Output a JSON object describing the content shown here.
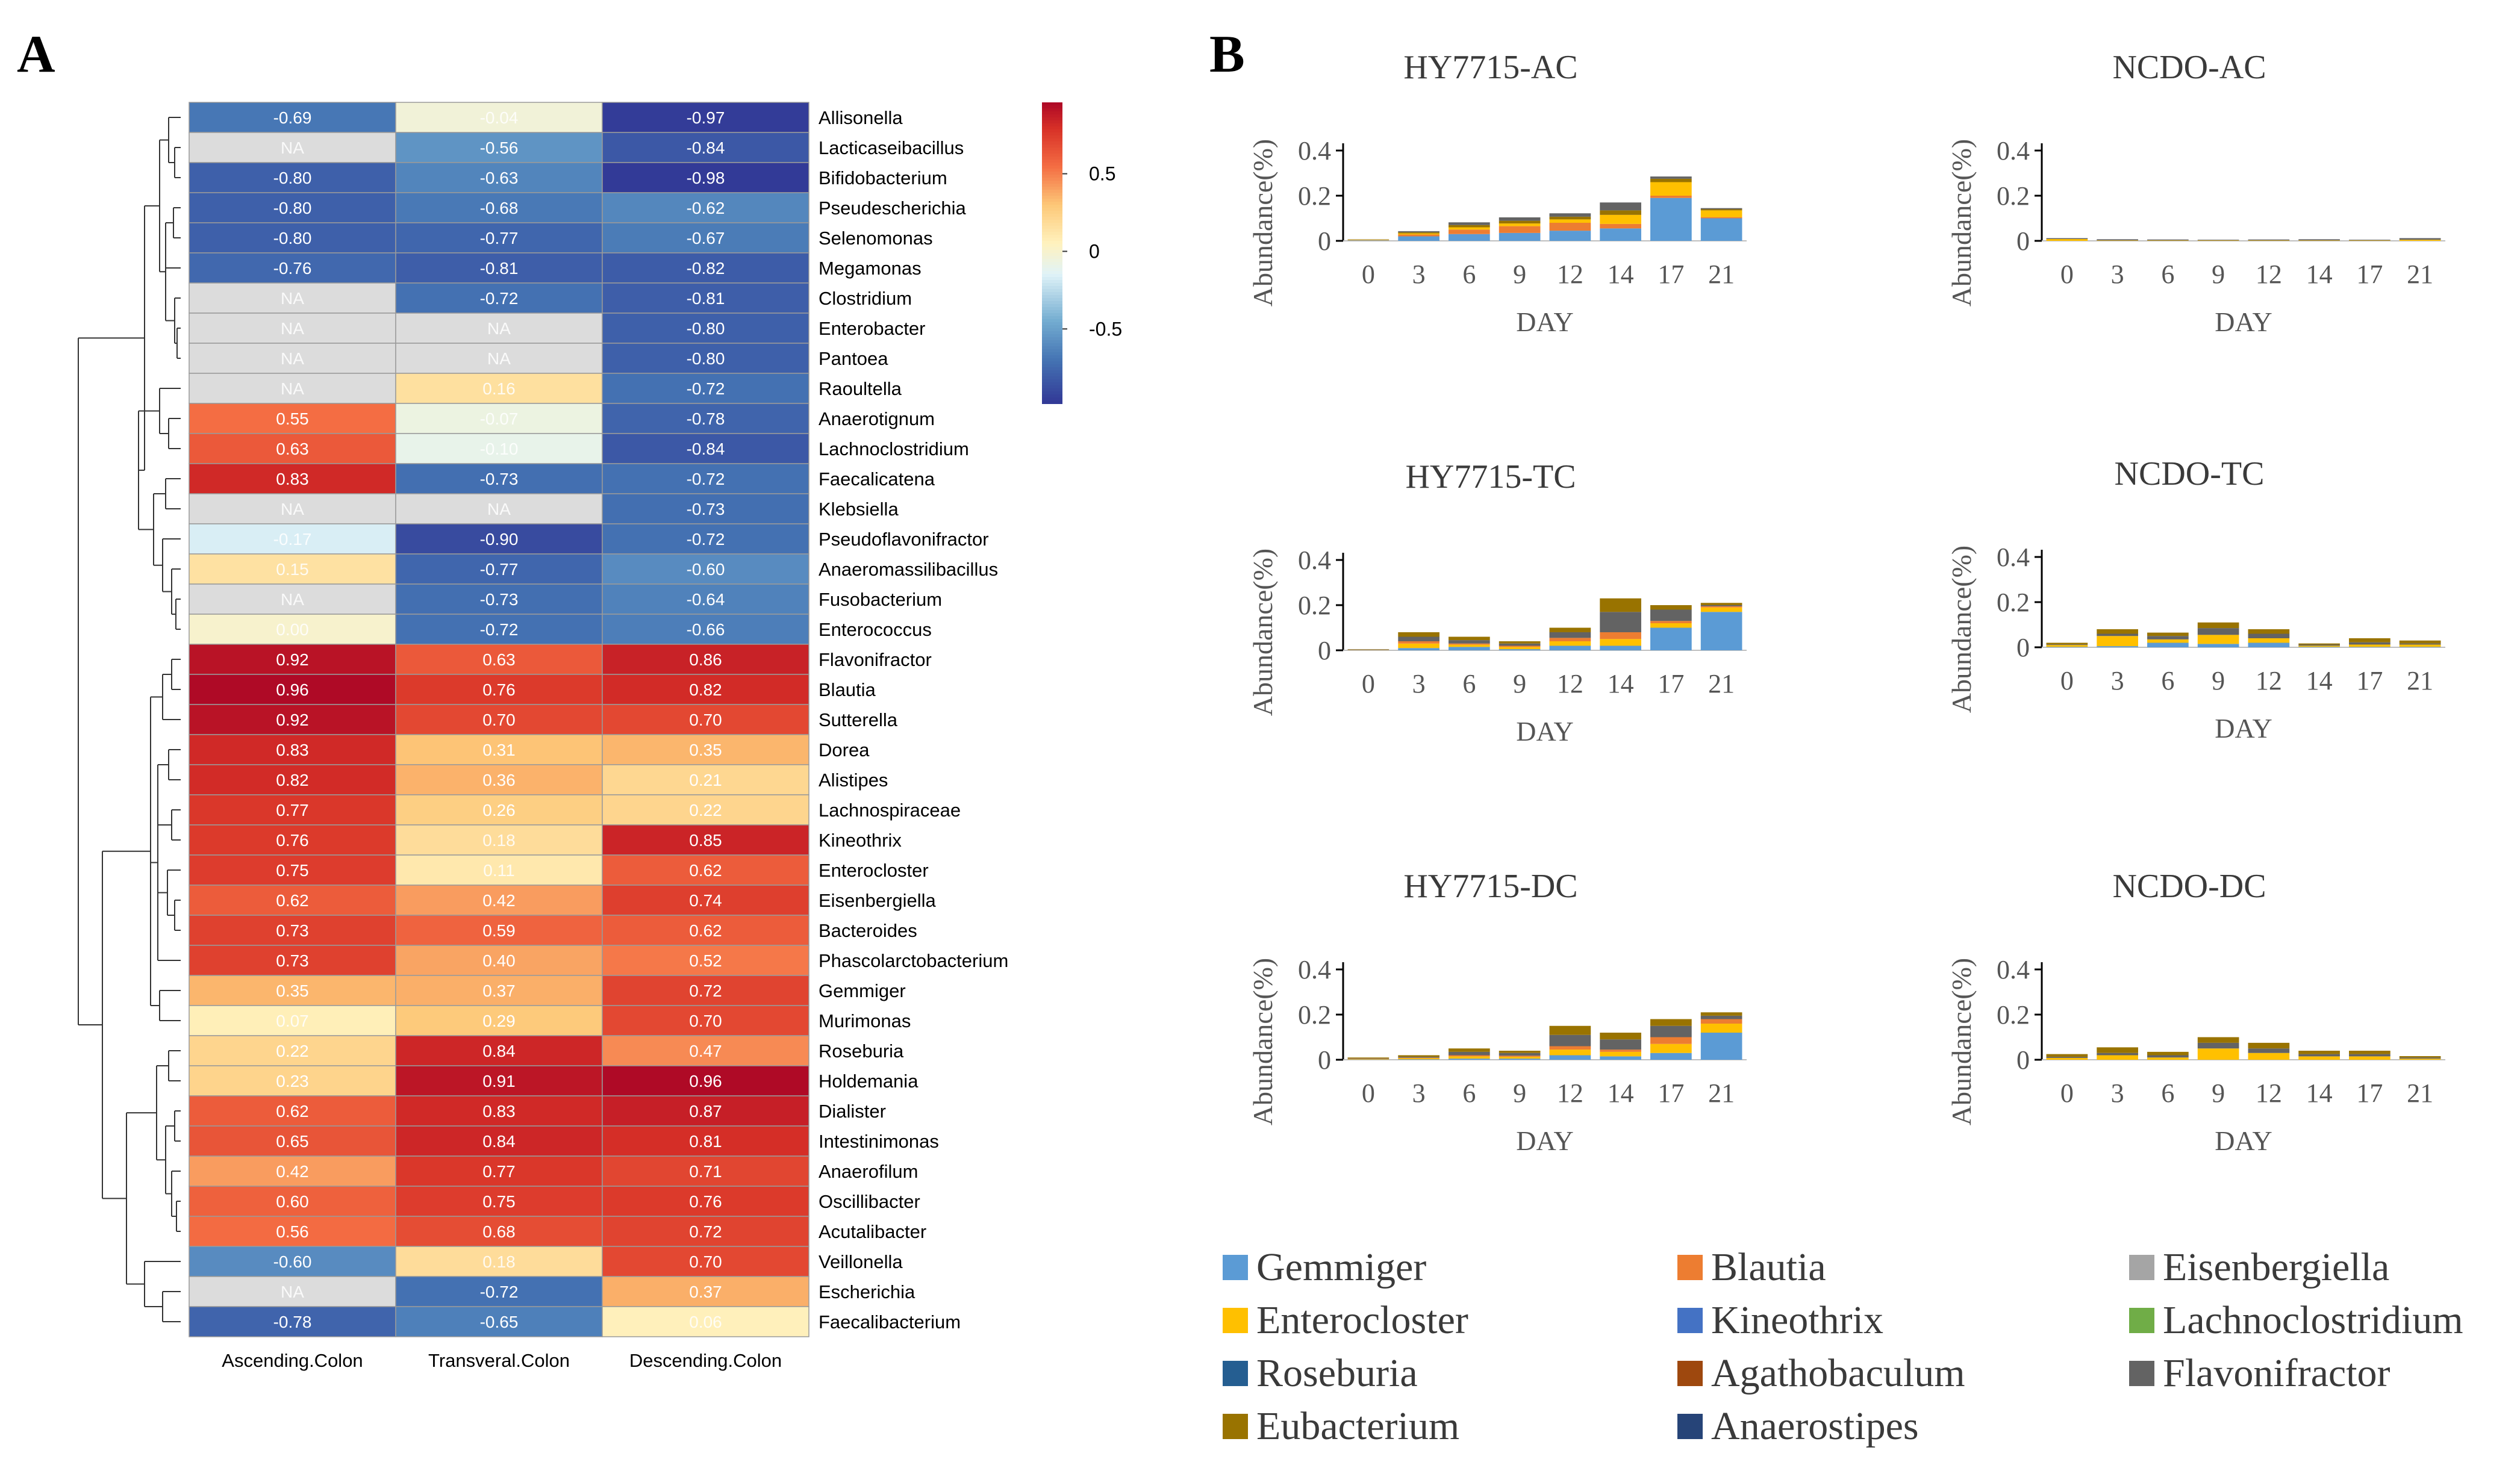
{
  "panels": {
    "a": "A",
    "b": "B"
  },
  "chart_data": [
    {
      "type": "heatmap",
      "title": "",
      "columns": [
        "Ascending.Colon",
        "Transveral.Colon",
        "Descending.Colon"
      ],
      "rows": [
        "Allisonella",
        "Lacticaseibacillus",
        "Bifidobacterium",
        "Pseudescherichia",
        "Selenomonas",
        "Megamonas",
        "Clostridium",
        "Enterobacter",
        "Pantoea",
        "Raoultella",
        "Anaerotignum",
        "Lachnoclostridium",
        "Faecalicatena",
        "Klebsiella",
        "Pseudoflavonifractor",
        "Anaeromassilibacillus",
        "Fusobacterium",
        "Enterococcus",
        "Flavonifractor",
        "Blautia",
        "Sutterella",
        "Dorea",
        "Alistipes",
        "Lachnospiraceae",
        "Kineothrix",
        "Enterocloster",
        "Eisenbergiella",
        "Bacteroides",
        "Phascolarctobacterium",
        "Gemmiger",
        "Murimonas",
        "Roseburia",
        "Holdemania",
        "Dialister",
        "Intestinimonas",
        "Anaerofilum",
        "Oscillibacter",
        "Acutalibacter",
        "Veillonella",
        "Escherichia",
        "Faecalibacterium"
      ],
      "values": [
        [
          "-0.69",
          "-0.04",
          "-0.97"
        ],
        [
          "NA",
          "-0.56",
          "-0.84"
        ],
        [
          "-0.80",
          "-0.63",
          "-0.98"
        ],
        [
          "-0.80",
          "-0.68",
          "-0.62"
        ],
        [
          "-0.80",
          "-0.77",
          "-0.67"
        ],
        [
          "-0.76",
          "-0.81",
          "-0.82"
        ],
        [
          "NA",
          "-0.72",
          "-0.81"
        ],
        [
          "NA",
          "NA",
          "-0.80"
        ],
        [
          "NA",
          "NA",
          "-0.80"
        ],
        [
          "NA",
          "0.16",
          "-0.72"
        ],
        [
          "0.55",
          "-0.07",
          "-0.78"
        ],
        [
          "0.63",
          "-0.10",
          "-0.84"
        ],
        [
          "0.83",
          "-0.73",
          "-0.72"
        ],
        [
          "NA",
          "NA",
          "-0.73"
        ],
        [
          "-0.17",
          "-0.90",
          "-0.72"
        ],
        [
          "0.15",
          "-0.77",
          "-0.60"
        ],
        [
          "NA",
          "-0.73",
          "-0.64"
        ],
        [
          "0.00",
          "-0.72",
          "-0.66"
        ],
        [
          "0.92",
          "0.63",
          "0.86"
        ],
        [
          "0.96",
          "0.76",
          "0.82"
        ],
        [
          "0.92",
          "0.70",
          "0.70"
        ],
        [
          "0.83",
          "0.31",
          "0.35"
        ],
        [
          "0.82",
          "0.36",
          "0.21"
        ],
        [
          "0.77",
          "0.26",
          "0.22"
        ],
        [
          "0.76",
          "0.18",
          "0.85"
        ],
        [
          "0.75",
          "0.11",
          "0.62"
        ],
        [
          "0.62",
          "0.42",
          "0.74"
        ],
        [
          "0.73",
          "0.59",
          "0.62"
        ],
        [
          "0.73",
          "0.40",
          "0.52"
        ],
        [
          "0.35",
          "0.37",
          "0.72"
        ],
        [
          "0.07",
          "0.29",
          "0.70"
        ],
        [
          "0.22",
          "0.84",
          "0.47"
        ],
        [
          "0.23",
          "0.91",
          "0.96"
        ],
        [
          "0.62",
          "0.83",
          "0.87"
        ],
        [
          "0.65",
          "0.84",
          "0.81"
        ],
        [
          "0.42",
          "0.77",
          "0.71"
        ],
        [
          "0.60",
          "0.75",
          "0.76"
        ],
        [
          "0.56",
          "0.68",
          "0.72"
        ],
        [
          "-0.60",
          "0.18",
          "0.70"
        ],
        [
          "NA",
          "-0.72",
          "0.37"
        ],
        [
          "-0.78",
          "-0.65",
          "0.06"
        ]
      ],
      "colorbar": {
        "ticks": [
          "0.5",
          "0",
          "-0.5"
        ],
        "tick_values": [
          0.5,
          0,
          -0.5
        ],
        "range": [
          -0.98,
          0.96
        ]
      },
      "na_color": "#dcdcdc"
    },
    {
      "type": "bar",
      "stacked": true,
      "title": "HY7715-AC",
      "xlabel": "DAY",
      "ylabel": "Abundance(%)",
      "categories": [
        "0",
        "3",
        "6",
        "9",
        "12",
        "14",
        "17",
        "21"
      ],
      "ylim": [
        0,
        0.4
      ],
      "yticks": [
        "0",
        "0.2",
        "0.4"
      ],
      "series": [
        {
          "name": "Gemmiger",
          "values": [
            0.002,
            0.02,
            0.03,
            0.035,
            0.045,
            0.055,
            0.19,
            0.1
          ]
        },
        {
          "name": "Blautia",
          "values": [
            0.001,
            0.008,
            0.02,
            0.03,
            0.035,
            0.02,
            0.01,
            0.005
          ]
        },
        {
          "name": "Enterocloster",
          "values": [
            0.002,
            0.005,
            0.01,
            0.012,
            0.015,
            0.04,
            0.06,
            0.03
          ]
        },
        {
          "name": "Eubacterium",
          "values": [
            0.001,
            0.005,
            0.01,
            0.012,
            0.012,
            0.02,
            0.015,
            0.005
          ]
        },
        {
          "name": "Flavonifractor",
          "values": [
            0.001,
            0.005,
            0.012,
            0.015,
            0.015,
            0.035,
            0.01,
            0.005
          ]
        }
      ]
    },
    {
      "type": "bar",
      "stacked": true,
      "title": "NCDO-AC",
      "xlabel": "DAY",
      "ylabel": "Abundance(%)",
      "categories": [
        "0",
        "3",
        "6",
        "9",
        "12",
        "14",
        "17",
        "21"
      ],
      "ylim": [
        0,
        0.4
      ],
      "yticks": [
        "0",
        "0.2",
        "0.4"
      ],
      "series": [
        {
          "name": "Enterocloster",
          "values": [
            0.008,
            0.002,
            0.002,
            0.002,
            0.002,
            0.002,
            0.002,
            0.005
          ]
        },
        {
          "name": "Flavonifractor",
          "values": [
            0.004,
            0.005,
            0.004,
            0.003,
            0.004,
            0.005,
            0.003,
            0.007
          ]
        }
      ]
    },
    {
      "type": "bar",
      "stacked": true,
      "title": "HY7715-TC",
      "xlabel": "DAY",
      "ylabel": "Abundance(%)",
      "categories": [
        "0",
        "3",
        "6",
        "9",
        "12",
        "14",
        "17",
        "21"
      ],
      "ylim": [
        0,
        0.4
      ],
      "yticks": [
        "0",
        "0.2",
        "0.4"
      ],
      "series": [
        {
          "name": "Gemmiger",
          "values": [
            0.001,
            0.01,
            0.015,
            0.005,
            0.02,
            0.02,
            0.1,
            0.17
          ]
        },
        {
          "name": "Enterocloster",
          "values": [
            0.001,
            0.02,
            0.01,
            0.01,
            0.02,
            0.03,
            0.02,
            0.02
          ]
        },
        {
          "name": "Blautia",
          "values": [
            0.001,
            0.01,
            0.005,
            0.005,
            0.015,
            0.03,
            0.01,
            0.005
          ]
        },
        {
          "name": "Flavonifractor",
          "values": [
            0.001,
            0.02,
            0.015,
            0.01,
            0.025,
            0.09,
            0.05,
            0.005
          ]
        },
        {
          "name": "Eubacterium",
          "values": [
            0.001,
            0.02,
            0.015,
            0.01,
            0.02,
            0.06,
            0.02,
            0.01
          ]
        }
      ]
    },
    {
      "type": "bar",
      "stacked": true,
      "title": "NCDO-TC",
      "xlabel": "DAY",
      "ylabel": "Abundance(%)",
      "categories": [
        "0",
        "3",
        "6",
        "9",
        "12",
        "14",
        "17",
        "21"
      ],
      "ylim": [
        0,
        0.4
      ],
      "yticks": [
        "0",
        "0.2",
        "0.4"
      ],
      "series": [
        {
          "name": "Gemmiger",
          "values": [
            0.002,
            0.005,
            0.02,
            0.015,
            0.02,
            0.002,
            0.002,
            0.002
          ]
        },
        {
          "name": "Enterocloster",
          "values": [
            0.008,
            0.045,
            0.015,
            0.04,
            0.02,
            0.005,
            0.01,
            0.01
          ]
        },
        {
          "name": "Flavonifractor",
          "values": [
            0.003,
            0.01,
            0.015,
            0.03,
            0.02,
            0.005,
            0.01,
            0.005
          ]
        },
        {
          "name": "Eubacterium",
          "values": [
            0.007,
            0.02,
            0.015,
            0.025,
            0.02,
            0.005,
            0.018,
            0.013
          ]
        }
      ]
    },
    {
      "type": "bar",
      "stacked": true,
      "title": "HY7715-DC",
      "xlabel": "DAY",
      "ylabel": "Abundance(%)",
      "categories": [
        "0",
        "3",
        "6",
        "9",
        "12",
        "14",
        "17",
        "21"
      ],
      "ylim": [
        0,
        0.4
      ],
      "yticks": [
        "0",
        "0.2",
        "0.4"
      ],
      "series": [
        {
          "name": "Gemmiger",
          "values": [
            0.001,
            0.002,
            0.005,
            0.005,
            0.02,
            0.015,
            0.03,
            0.12
          ]
        },
        {
          "name": "Enterocloster",
          "values": [
            0.002,
            0.005,
            0.01,
            0.008,
            0.025,
            0.02,
            0.04,
            0.04
          ]
        },
        {
          "name": "Blautia",
          "values": [
            0.001,
            0.002,
            0.005,
            0.005,
            0.015,
            0.01,
            0.03,
            0.02
          ]
        },
        {
          "name": "Flavonifractor",
          "values": [
            0.002,
            0.004,
            0.015,
            0.012,
            0.05,
            0.045,
            0.05,
            0.015
          ]
        },
        {
          "name": "Eubacterium",
          "values": [
            0.004,
            0.007,
            0.015,
            0.01,
            0.04,
            0.03,
            0.03,
            0.015
          ]
        }
      ]
    },
    {
      "type": "bar",
      "stacked": true,
      "title": "NCDO-DC",
      "xlabel": "DAY",
      "ylabel": "Abundance(%)",
      "categories": [
        "0",
        "3",
        "6",
        "9",
        "12",
        "14",
        "17",
        "21"
      ],
      "ylim": [
        0,
        0.4
      ],
      "yticks": [
        "0",
        "0.2",
        "0.4"
      ],
      "series": [
        {
          "name": "Enterocloster",
          "values": [
            0.008,
            0.02,
            0.01,
            0.05,
            0.03,
            0.015,
            0.015,
            0.005
          ]
        },
        {
          "name": "Flavonifractor",
          "values": [
            0.005,
            0.01,
            0.01,
            0.025,
            0.02,
            0.01,
            0.01,
            0.005
          ]
        },
        {
          "name": "Eubacterium",
          "values": [
            0.012,
            0.025,
            0.015,
            0.025,
            0.025,
            0.015,
            0.015,
            0.006
          ]
        }
      ]
    }
  ],
  "legend": [
    {
      "name": "Gemmiger",
      "color": "#5b9bd5"
    },
    {
      "name": "Blautia",
      "color": "#ed7d31"
    },
    {
      "name": "Eisenbergiella",
      "color": "#a5a5a5"
    },
    {
      "name": "Enterocloster",
      "color": "#ffc000"
    },
    {
      "name": "Kineothrix",
      "color": "#4472c4"
    },
    {
      "name": "Lachnoclostridium",
      "color": "#70ad47"
    },
    {
      "name": "Roseburia",
      "color": "#255e91"
    },
    {
      "name": "Agathobaculum",
      "color": "#9e480e"
    },
    {
      "name": "Flavonifractor",
      "color": "#636363"
    },
    {
      "name": "Eubacterium",
      "color": "#997300"
    },
    {
      "name": "Anaerostipes",
      "color": "#264478"
    }
  ]
}
